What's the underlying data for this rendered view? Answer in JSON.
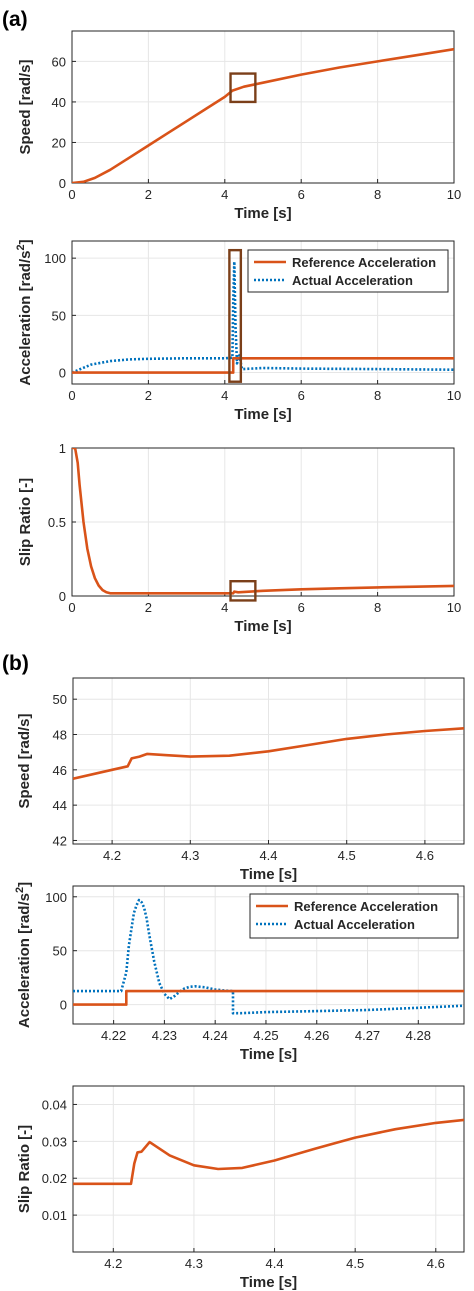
{
  "panel_labels": [
    "(a)",
    "(b)"
  ],
  "colors": {
    "reference": "#D95319",
    "actual": "#0072BD",
    "box": "#7B3F19",
    "grid": "#e6e6e6",
    "axis": "#262626"
  },
  "legend": {
    "reference": "Reference Acceleration",
    "actual": "Actual Acceleration"
  },
  "chart_data": [
    {
      "id": "a1",
      "type": "line",
      "xlabel": "Time [s]",
      "ylabel": "Speed [rad/s]",
      "xlim": [
        0,
        10
      ],
      "ylim": [
        0,
        75
      ],
      "grid": true,
      "xticks": [
        0,
        2,
        4,
        6,
        8,
        10
      ],
      "yticks": [
        0,
        20,
        40,
        60
      ],
      "series": [
        {
          "key": "reference",
          "style": "solid",
          "x": [
            0,
            0.3,
            0.6,
            1,
            1.5,
            2,
            2.5,
            3,
            3.5,
            4,
            4.2,
            4.5,
            5,
            6,
            7,
            8,
            9,
            10
          ],
          "y": [
            0,
            0.6,
            2.5,
            6.5,
            12.5,
            18.5,
            24.5,
            30.5,
            36.5,
            42.5,
            45.6,
            47.5,
            49.5,
            53.5,
            57,
            60,
            63,
            66
          ]
        }
      ],
      "annotations": [
        {
          "type": "box",
          "x": [
            4.15,
            4.8
          ],
          "y": [
            40,
            54
          ]
        }
      ]
    },
    {
      "id": "a2",
      "type": "line",
      "xlabel": "Time [s]",
      "ylabel": "Acceleration [rad/s",
      "ylabel_sup": "2",
      "ylabel_end": "]",
      "xlim": [
        0,
        10
      ],
      "ylim": [
        -10,
        115
      ],
      "grid": true,
      "xticks": [
        0,
        2,
        4,
        6,
        8,
        10
      ],
      "yticks": [
        0,
        50,
        100
      ],
      "legend_position": "top-right",
      "series": [
        {
          "key": "reference",
          "style": "solid",
          "x": [
            0,
            4.22,
            4.22,
            10
          ],
          "y": [
            0,
            0,
            12.5,
            12.5
          ]
        },
        {
          "key": "actual",
          "style": "dotted",
          "x": [
            0,
            0.5,
            1,
            1.5,
            2,
            3,
            4,
            4.2,
            4.22,
            4.25,
            4.28,
            4.32,
            4.38,
            4.45,
            5,
            6,
            8,
            10
          ],
          "y": [
            0,
            7,
            10,
            11.5,
            12,
            12.5,
            12.5,
            13,
            60,
            97,
            40,
            8,
            15,
            3,
            4,
            3.5,
            3,
            2.5
          ]
        }
      ],
      "annotations": [
        {
          "type": "box",
          "x": [
            4.12,
            4.42
          ],
          "y": [
            -8,
            107
          ]
        }
      ]
    },
    {
      "id": "a3",
      "type": "line",
      "xlabel": "Time [s]",
      "ylabel": "Slip Ratio [-]",
      "xlim": [
        0,
        10
      ],
      "ylim": [
        0,
        1
      ],
      "grid": true,
      "xticks": [
        0,
        2,
        4,
        6,
        8,
        10
      ],
      "yticks": [
        0,
        0.5,
        1
      ],
      "series": [
        {
          "key": "reference",
          "style": "solid",
          "x": [
            0,
            0.08,
            0.15,
            0.2,
            0.3,
            0.4,
            0.5,
            0.6,
            0.7,
            0.8,
            0.9,
            1,
            1.5,
            2,
            3,
            4,
            4.22,
            4.25,
            4.35,
            5,
            6,
            7,
            8,
            9,
            10
          ],
          "y": [
            1,
            1,
            0.9,
            0.75,
            0.5,
            0.32,
            0.2,
            0.12,
            0.07,
            0.04,
            0.025,
            0.018,
            0.018,
            0.018,
            0.018,
            0.018,
            0.018,
            0.03,
            0.025,
            0.035,
            0.045,
            0.052,
            0.058,
            0.063,
            0.068
          ]
        }
      ],
      "annotations": [
        {
          "type": "box",
          "x": [
            4.15,
            4.8
          ],
          "y": [
            -0.03,
            0.1
          ]
        }
      ]
    },
    {
      "id": "b1",
      "type": "line",
      "xlabel": "Time [s]",
      "ylabel": "Speed [rad/s]",
      "xlim": [
        4.15,
        4.65
      ],
      "ylim": [
        41.8,
        51.2
      ],
      "grid": true,
      "xticks": [
        4.2,
        4.3,
        4.4,
        4.5,
        4.6
      ],
      "yticks": [
        42,
        44,
        46,
        48,
        50
      ],
      "series": [
        {
          "key": "reference",
          "style": "solid",
          "x": [
            4.15,
            4.2,
            4.22,
            4.225,
            4.235,
            4.245,
            4.27,
            4.3,
            4.35,
            4.4,
            4.45,
            4.5,
            4.55,
            4.6,
            4.65
          ],
          "y": [
            45.5,
            46.0,
            46.2,
            46.65,
            46.75,
            46.9,
            46.83,
            46.75,
            46.8,
            47.05,
            47.4,
            47.75,
            48.0,
            48.2,
            48.35
          ]
        }
      ]
    },
    {
      "id": "b2",
      "type": "line",
      "xlabel": "Time [s]",
      "ylabel": "Acceleration [rad/s",
      "ylabel_sup": "2",
      "ylabel_end": "]",
      "xlim": [
        4.212,
        4.289
      ],
      "ylim": [
        -18,
        110
      ],
      "grid": true,
      "xticks": [
        4.22,
        4.23,
        4.24,
        4.25,
        4.26,
        4.27,
        4.28
      ],
      "yticks": [
        0,
        50,
        100
      ],
      "legend_position": "top-right",
      "series": [
        {
          "key": "reference",
          "style": "solid",
          "x": [
            4.212,
            4.2225,
            4.2225,
            4.289
          ],
          "y": [
            0,
            0,
            12.5,
            12.5
          ]
        },
        {
          "key": "actual",
          "style": "dotted",
          "x": [
            4.212,
            4.2215,
            4.2225,
            4.223,
            4.2235,
            4.224,
            4.2245,
            4.225,
            4.2255,
            4.226,
            4.2265,
            4.227,
            4.228,
            4.229,
            4.23,
            4.231,
            4.232,
            4.233,
            4.234,
            4.235,
            4.236,
            4.237,
            4.238,
            4.24,
            4.242,
            4.2435,
            4.2435,
            4.245,
            4.25,
            4.26,
            4.27,
            4.28,
            4.289
          ],
          "y": [
            12.5,
            12.5,
            30,
            55,
            70,
            85,
            92,
            97,
            95,
            90,
            80,
            65,
            40,
            20,
            10,
            5,
            8,
            12,
            15,
            16.5,
            17,
            16.5,
            16,
            14,
            13,
            12.5,
            -8,
            -8,
            -7,
            -6,
            -5,
            -3,
            -1
          ]
        }
      ]
    },
    {
      "id": "b3",
      "type": "line",
      "xlabel": "Time [s]",
      "ylabel": "Slip Ratio [-]",
      "xlim": [
        4.15,
        4.635
      ],
      "ylim": [
        0,
        0.045
      ],
      "grid": true,
      "xticks": [
        4.2,
        4.3,
        4.4,
        4.5,
        4.6
      ],
      "yticks": [
        0.01,
        0.02,
        0.03,
        0.04
      ],
      "series": [
        {
          "key": "reference",
          "style": "solid",
          "x": [
            4.15,
            4.222,
            4.226,
            4.23,
            4.235,
            4.245,
            4.27,
            4.3,
            4.33,
            4.36,
            4.4,
            4.45,
            4.5,
            4.55,
            4.6,
            4.635
          ],
          "y": [
            0.0185,
            0.0185,
            0.024,
            0.027,
            0.0272,
            0.0298,
            0.0262,
            0.0235,
            0.0225,
            0.0228,
            0.0248,
            0.028,
            0.031,
            0.0333,
            0.035,
            0.0358
          ]
        }
      ]
    }
  ]
}
